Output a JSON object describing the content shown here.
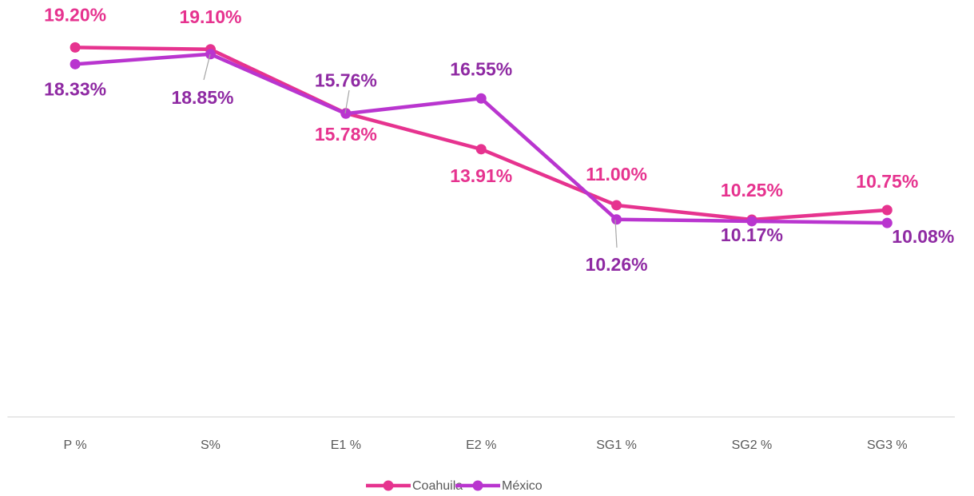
{
  "chart_data": {
    "type": "line",
    "categories": [
      "P %",
      "S%",
      "E1 %",
      "E2 %",
      "SG1 %",
      "SG2 %",
      "SG3 %"
    ],
    "series": [
      {
        "name": "Coahuila",
        "color": "#e6338f",
        "label_color": "#e6338f",
        "values": [
          19.2,
          19.1,
          15.78,
          13.91,
          11.0,
          10.25,
          10.75
        ],
        "value_labels": [
          "19.20%",
          "19.10%",
          "15.78%",
          "13.91%",
          "11.00%",
          "10.25%",
          "10.75%"
        ]
      },
      {
        "name": "México",
        "color": "#b935cf",
        "label_color": "#8f2aa3",
        "values": [
          18.33,
          18.85,
          15.76,
          16.55,
          10.26,
          10.17,
          10.08
        ],
        "value_labels": [
          "18.33%",
          "18.85%",
          "15.76%",
          "16.55%",
          "10.26%",
          "10.17%",
          "10.08%"
        ]
      }
    ],
    "ylim": [
      0,
      21
    ],
    "legend": "bottom"
  }
}
